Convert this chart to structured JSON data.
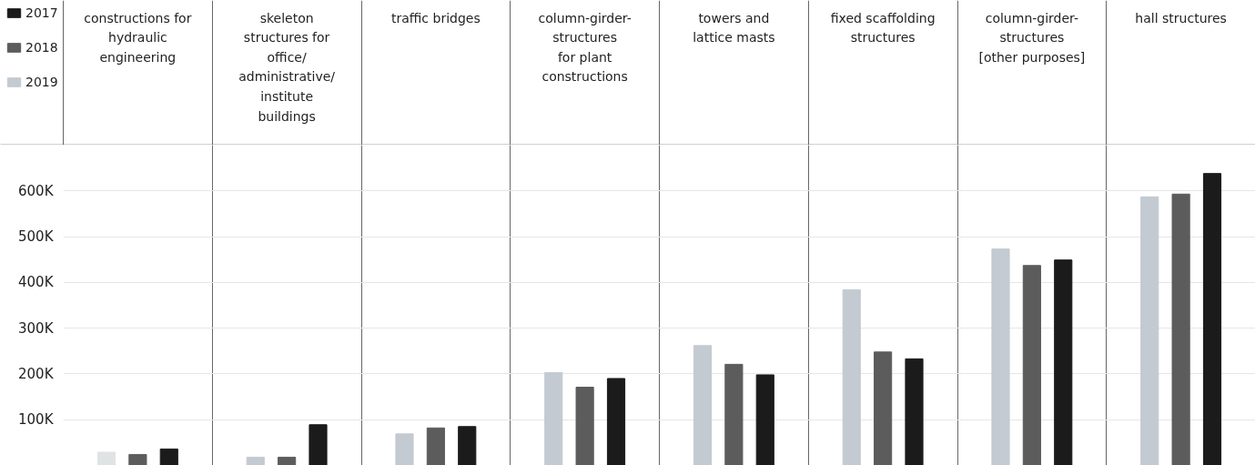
{
  "chart_data": {
    "type": "bar",
    "categories": [
      "constructions for\nhydraulic\nengineering",
      "skeleton\nstructures for\noffice/\nadministrative/\ninstitute\nbuildings",
      "traffic bridges",
      "column-girder-\nstructures\nfor plant\nconstructions",
      "towers and\nlattice masts",
      "fixed scaffolding\nstructures",
      "column-girder-\nstructures\n[other purposes]",
      "hall structures"
    ],
    "series": [
      {
        "name": "2019",
        "color": "#c3cad1",
        "colors": [
          "#e0e3e4",
          "#c3cad1",
          "#c3cad1",
          "#c3cad1",
          "#c3cad1",
          "#c3cad1",
          "#c3cad1",
          "#c3cad1"
        ],
        "values": [
          29000,
          18000,
          69000,
          203000,
          262000,
          384000,
          473000,
          587000
        ]
      },
      {
        "name": "2018",
        "color": "#5c5c5c",
        "values": [
          24000,
          18000,
          82000,
          171000,
          221000,
          248000,
          437000,
          593000
        ]
      },
      {
        "name": "2017",
        "color": "#1b1b1b",
        "values": [
          36000,
          89000,
          85000,
          190000,
          198000,
          233000,
          449000,
          638000
        ]
      }
    ],
    "ylim": [
      0,
      700000
    ],
    "yticks": [
      {
        "value": 100000,
        "label": "100K"
      },
      {
        "value": 200000,
        "label": "200K"
      },
      {
        "value": 300000,
        "label": "300K"
      },
      {
        "value": 400000,
        "label": "400K"
      },
      {
        "value": 500000,
        "label": "500K"
      },
      {
        "value": 600000,
        "label": "600K"
      }
    ],
    "grid": true,
    "legend": "top left",
    "tick_labels": "y"
  }
}
